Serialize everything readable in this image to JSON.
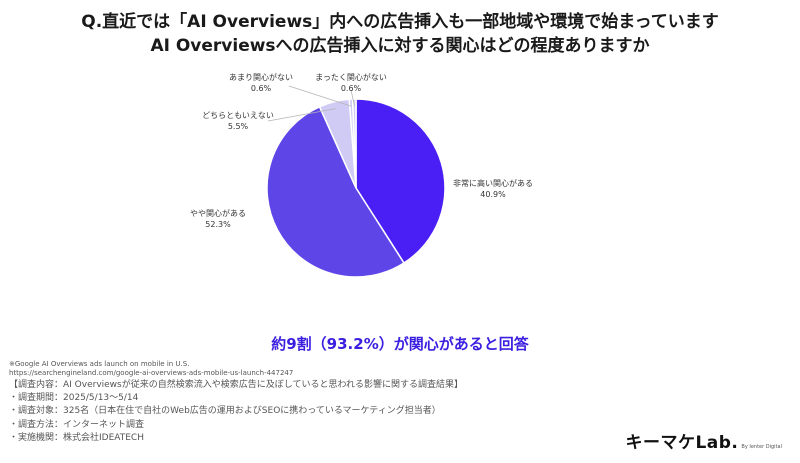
{
  "header": {
    "title_line1": "Q.直近では「AI Overviews」内への広告挿入も一部地域や環境で始まっています",
    "title_line2": "AI Overviewsへの広告挿入に対する関心はどの程度ありますか"
  },
  "chart_data": {
    "type": "pie",
    "labels": [
      "非常に高い関心がある",
      "やや関心がある",
      "どちらともいえない",
      "あまり関心がない",
      "まったく関心がない"
    ],
    "values": [
      40.9,
      52.3,
      5.5,
      0.6,
      0.6
    ],
    "value_labels": [
      "40.9%",
      "52.3%",
      "5.5%",
      "0.6%",
      "0.6%"
    ],
    "colors": [
      "#4a1ff5",
      "#5e45e8",
      "#d0cbf4",
      "#d0cbf4",
      "#d0cbf4"
    ],
    "start_angle": "12 o'clock, clockwise"
  },
  "summary": "約9割（93.2%）が関心があると回答",
  "footnote": {
    "line1": "※Google AI Overviews ads launch on mobile in U.S.",
    "line2": "https://searchengineland.com/google-ai-overviews-ads-mobile-us-launch-447247"
  },
  "survey": {
    "line1": "【調査内容：AI Overviewsが従来の自然検索流入や検索広告に及ぼしていると思われる影響に関する調査結果】",
    "line2": "・調査期間：2025/5/13〜5/14",
    "line3": "・調査対象：325名（日本在住で自社のWeb広告の運用およびSEOに携わっているマーケティング担当者）",
    "line4": "・調査方法：インターネット調査",
    "line5": "・実施機関：株式会社IDEATECH"
  },
  "logo": {
    "brand": "キーマケLab.",
    "sub": "By Ienter Digital"
  }
}
